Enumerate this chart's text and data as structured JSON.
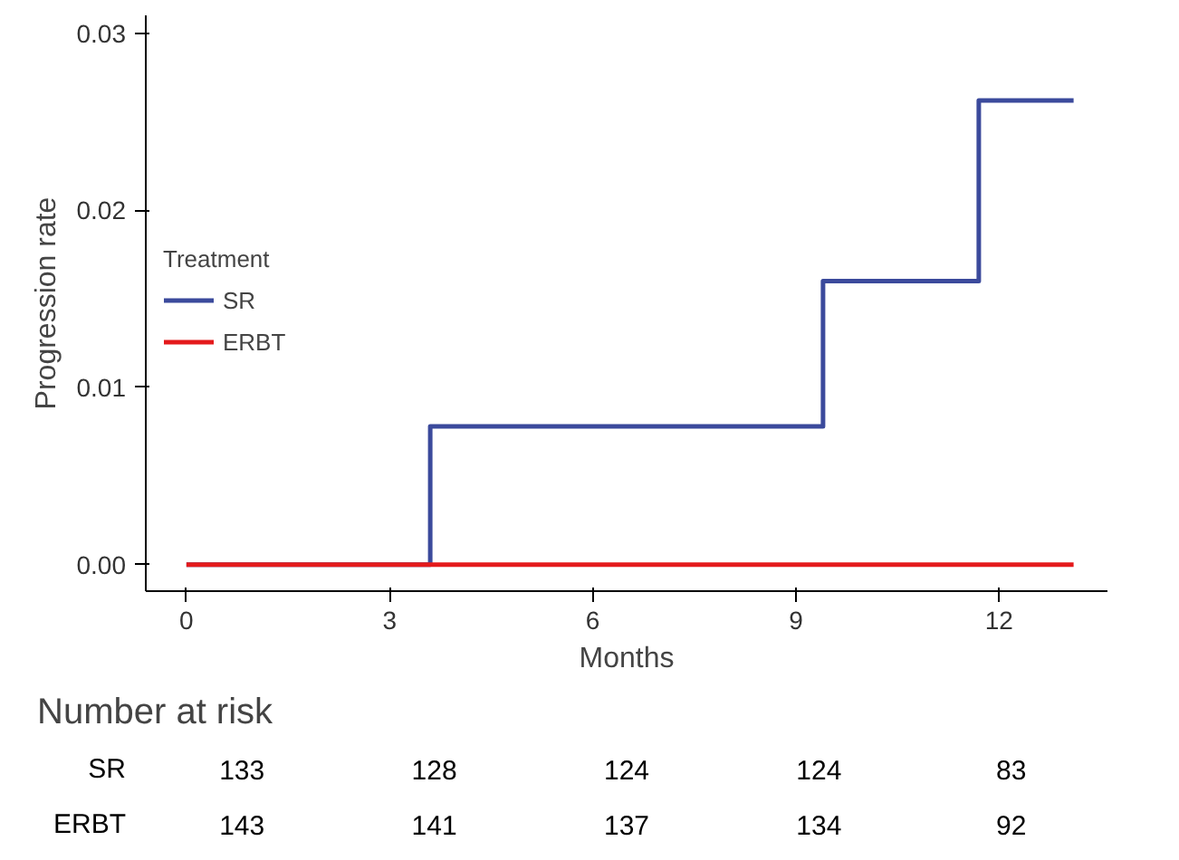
{
  "chart_data": [
    {
      "type": "step",
      "xlabel": "Months",
      "ylabel": "Progression rate",
      "legend_title": "Treatment",
      "legend": "left",
      "grid": false,
      "xlim": [
        -0.6,
        13.6
      ],
      "xticks": [
        0,
        3,
        6,
        9,
        12
      ],
      "ylim": [
        -0.0015,
        0.031
      ],
      "yticks": [
        {
          "value": 0,
          "label": "0.00"
        },
        {
          "value": 0.01,
          "label": "0.01"
        },
        {
          "value": 0.02,
          "label": "0.02"
        },
        {
          "value": 0.03,
          "label": "0.03"
        }
      ],
      "series": [
        {
          "name": "SR",
          "color": "#3b4a9c",
          "x": [
            0,
            3.6,
            9.4,
            11.7,
            13.1
          ],
          "values": [
            0,
            0.0078,
            0.016,
            0.0262,
            0.0262
          ]
        },
        {
          "name": "ERBT",
          "color": "#e41a1c",
          "x": [
            0,
            13.1
          ],
          "values": [
            0,
            0
          ]
        }
      ]
    },
    {
      "type": "heatmap",
      "title": "Number at risk",
      "categories": [
        null,
        null,
        null,
        null,
        null
      ],
      "y_categories": [
        "SR",
        "ERBT"
      ],
      "data_labels": true,
      "cells": [
        [
          133,
          128,
          124,
          124,
          83
        ],
        [
          143,
          141,
          137,
          134,
          92
        ]
      ]
    }
  ]
}
